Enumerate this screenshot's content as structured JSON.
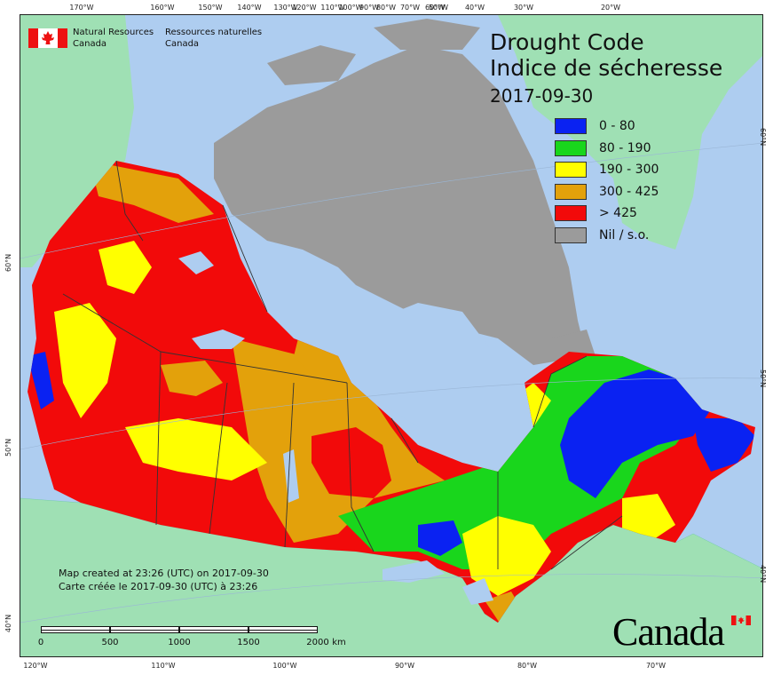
{
  "header": {
    "dept_en": [
      "Natural Resources",
      "Canada"
    ],
    "dept_fr": [
      "Ressources naturelles",
      "Canada"
    ]
  },
  "title": {
    "line1": "Drought Code",
    "line2": "Indice de sécheresse",
    "date": "2017-09-30"
  },
  "legend": [
    {
      "label": "0 - 80",
      "color": "#0a22f2"
    },
    {
      "label": "80 - 190",
      "color": "#19d61c"
    },
    {
      "label": "190 - 300",
      "color": "#ffff00"
    },
    {
      "label": "300 - 425",
      "color": "#e3a10b"
    },
    {
      "label": "> 425",
      "color": "#f20a0a"
    },
    {
      "label": "Nil / s.o.",
      "color": "#9b9b9b"
    }
  ],
  "colors": {
    "ocean": "#aecdf0",
    "land_outside": "#9fe0b4",
    "no_data": "#9b9b9b",
    "borders": "#333333"
  },
  "note": {
    "line1": "Map created at 23:26 (UTC) on 2017-09-30",
    "line2": "Carte créée le 2017-09-30 (UTC) à 23:26"
  },
  "scale": {
    "labels": [
      "0",
      "500",
      "1000",
      "1500",
      "2000"
    ],
    "unit": "km"
  },
  "graticule": {
    "top": [
      "170°W",
      "160°W",
      "150°W",
      "140°W",
      "130°W",
      "120°W",
      "110°W",
      "100°W",
      "90°W",
      "80°W",
      "70°W",
      "60°W",
      "50°W",
      "40°W",
      "30°W",
      "20°W"
    ],
    "bottom": [
      "120°W",
      "110°W",
      "100°W",
      "90°W",
      "80°W",
      "70°W"
    ],
    "left": [
      "60°N",
      "50°N",
      "40°N"
    ],
    "right": [
      "60°N",
      "50°N",
      "40°N"
    ]
  },
  "wordmark": "Canada"
}
